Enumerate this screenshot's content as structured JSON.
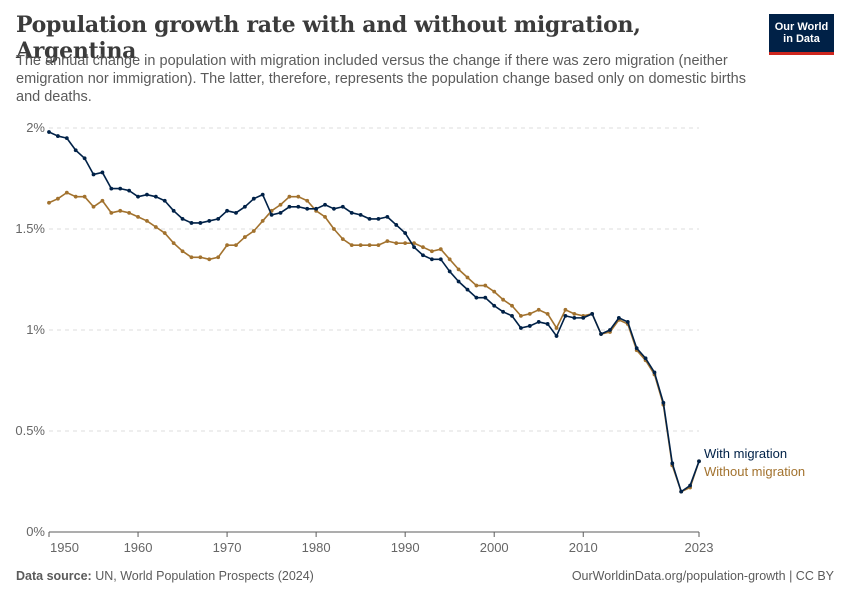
{
  "header": {
    "title": "Population growth rate with and without migration, Argentina",
    "subtitle": "The annual change in population with migration included versus the change if there was zero migration (neither emigration nor immigration). The latter, therefore, represents the population change based only on domestic births and deaths.",
    "logo_line1": "Our World",
    "logo_line2": "in Data"
  },
  "footer": {
    "source_label": "Data source:",
    "source_text": "UN, World Population Prospects (2024)",
    "url_license": "OurWorldinData.org/population-growth | CC BY"
  },
  "chart_data": {
    "type": "line",
    "x": [
      1950,
      1951,
      1952,
      1953,
      1954,
      1955,
      1956,
      1957,
      1958,
      1959,
      1960,
      1961,
      1962,
      1963,
      1964,
      1965,
      1966,
      1967,
      1968,
      1969,
      1970,
      1971,
      1972,
      1973,
      1974,
      1975,
      1976,
      1977,
      1978,
      1979,
      1980,
      1981,
      1982,
      1983,
      1984,
      1985,
      1986,
      1987,
      1988,
      1989,
      1990,
      1991,
      1992,
      1993,
      1994,
      1995,
      1996,
      1997,
      1998,
      1999,
      2000,
      2001,
      2002,
      2003,
      2004,
      2005,
      2006,
      2007,
      2008,
      2009,
      2010,
      2011,
      2012,
      2013,
      2014,
      2015,
      2016,
      2017,
      2018,
      2019,
      2020,
      2021,
      2022,
      2023
    ],
    "series": [
      {
        "name": "With migration",
        "color": "#002147",
        "values": [
          1.98,
          1.96,
          1.95,
          1.89,
          1.85,
          1.77,
          1.78,
          1.7,
          1.7,
          1.69,
          1.66,
          1.67,
          1.66,
          1.64,
          1.59,
          1.55,
          1.53,
          1.53,
          1.54,
          1.55,
          1.59,
          1.58,
          1.61,
          1.65,
          1.67,
          1.57,
          1.58,
          1.61,
          1.61,
          1.6,
          1.6,
          1.62,
          1.6,
          1.61,
          1.58,
          1.57,
          1.55,
          1.55,
          1.56,
          1.52,
          1.48,
          1.41,
          1.37,
          1.35,
          1.35,
          1.29,
          1.24,
          1.2,
          1.16,
          1.16,
          1.12,
          1.09,
          1.07,
          1.01,
          1.02,
          1.04,
          1.03,
          0.97,
          1.07,
          1.06,
          1.06,
          1.08,
          0.98,
          1.0,
          1.06,
          1.04,
          0.91,
          0.86,
          0.79,
          0.64,
          0.34,
          0.2,
          0.23,
          0.35
        ]
      },
      {
        "name": "Without migration",
        "color": "#a2722e",
        "values": [
          1.63,
          1.65,
          1.68,
          1.66,
          1.66,
          1.61,
          1.64,
          1.58,
          1.59,
          1.58,
          1.56,
          1.54,
          1.51,
          1.48,
          1.43,
          1.39,
          1.36,
          1.36,
          1.35,
          1.36,
          1.42,
          1.42,
          1.46,
          1.49,
          1.54,
          1.59,
          1.62,
          1.66,
          1.66,
          1.64,
          1.59,
          1.56,
          1.5,
          1.45,
          1.42,
          1.42,
          1.42,
          1.42,
          1.44,
          1.43,
          1.43,
          1.43,
          1.41,
          1.39,
          1.4,
          1.35,
          1.3,
          1.26,
          1.22,
          1.22,
          1.19,
          1.15,
          1.12,
          1.07,
          1.08,
          1.1,
          1.08,
          1.01,
          1.1,
          1.08,
          1.07,
          1.08,
          0.98,
          0.99,
          1.05,
          1.03,
          0.9,
          0.85,
          0.78,
          0.63,
          0.33,
          0.2,
          0.22,
          0.35
        ]
      }
    ],
    "y_ticks": [
      0,
      0.5,
      1,
      1.5,
      2
    ],
    "y_tick_labels": [
      "0%",
      "0.5%",
      "1%",
      "1.5%",
      "2%"
    ],
    "x_ticks": [
      1950,
      1960,
      1970,
      1980,
      1990,
      2000,
      2010,
      2023
    ],
    "x_tick_labels": [
      "1950",
      "1960",
      "1970",
      "1980",
      "1990",
      "2000",
      "2010",
      "2023"
    ],
    "xlim": [
      1950,
      2023
    ],
    "ylim": [
      0,
      2
    ],
    "grid": "horizontal dashed",
    "legend": "inline labels at line ends (right)"
  }
}
